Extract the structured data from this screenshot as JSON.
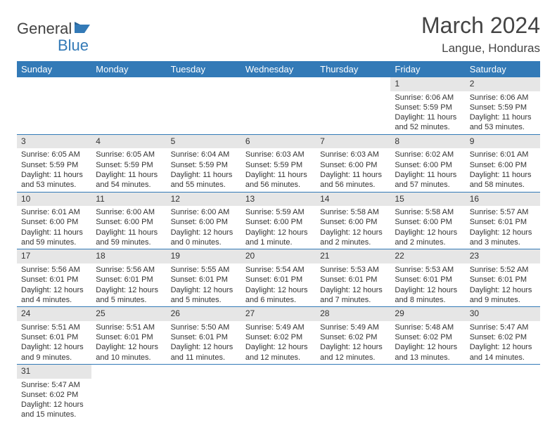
{
  "logo": {
    "text1": "General",
    "text2": "Blue"
  },
  "title": "March 2024",
  "location": "Langue, Honduras",
  "colors": {
    "header_bg": "#337ab7",
    "header_text": "#ffffff",
    "daynum_bg": "#e6e6e6",
    "rule": "#337ab7"
  },
  "day_headers": [
    "Sunday",
    "Monday",
    "Tuesday",
    "Wednesday",
    "Thursday",
    "Friday",
    "Saturday"
  ],
  "weeks": [
    [
      null,
      null,
      null,
      null,
      null,
      {
        "n": "1",
        "sr": "Sunrise: 6:06 AM",
        "ss": "Sunset: 5:59 PM",
        "dl": "Daylight: 11 hours and 52 minutes."
      },
      {
        "n": "2",
        "sr": "Sunrise: 6:06 AM",
        "ss": "Sunset: 5:59 PM",
        "dl": "Daylight: 11 hours and 53 minutes."
      }
    ],
    [
      {
        "n": "3",
        "sr": "Sunrise: 6:05 AM",
        "ss": "Sunset: 5:59 PM",
        "dl": "Daylight: 11 hours and 53 minutes."
      },
      {
        "n": "4",
        "sr": "Sunrise: 6:05 AM",
        "ss": "Sunset: 5:59 PM",
        "dl": "Daylight: 11 hours and 54 minutes."
      },
      {
        "n": "5",
        "sr": "Sunrise: 6:04 AM",
        "ss": "Sunset: 5:59 PM",
        "dl": "Daylight: 11 hours and 55 minutes."
      },
      {
        "n": "6",
        "sr": "Sunrise: 6:03 AM",
        "ss": "Sunset: 5:59 PM",
        "dl": "Daylight: 11 hours and 56 minutes."
      },
      {
        "n": "7",
        "sr": "Sunrise: 6:03 AM",
        "ss": "Sunset: 6:00 PM",
        "dl": "Daylight: 11 hours and 56 minutes."
      },
      {
        "n": "8",
        "sr": "Sunrise: 6:02 AM",
        "ss": "Sunset: 6:00 PM",
        "dl": "Daylight: 11 hours and 57 minutes."
      },
      {
        "n": "9",
        "sr": "Sunrise: 6:01 AM",
        "ss": "Sunset: 6:00 PM",
        "dl": "Daylight: 11 hours and 58 minutes."
      }
    ],
    [
      {
        "n": "10",
        "sr": "Sunrise: 6:01 AM",
        "ss": "Sunset: 6:00 PM",
        "dl": "Daylight: 11 hours and 59 minutes."
      },
      {
        "n": "11",
        "sr": "Sunrise: 6:00 AM",
        "ss": "Sunset: 6:00 PM",
        "dl": "Daylight: 11 hours and 59 minutes."
      },
      {
        "n": "12",
        "sr": "Sunrise: 6:00 AM",
        "ss": "Sunset: 6:00 PM",
        "dl": "Daylight: 12 hours and 0 minutes."
      },
      {
        "n": "13",
        "sr": "Sunrise: 5:59 AM",
        "ss": "Sunset: 6:00 PM",
        "dl": "Daylight: 12 hours and 1 minute."
      },
      {
        "n": "14",
        "sr": "Sunrise: 5:58 AM",
        "ss": "Sunset: 6:00 PM",
        "dl": "Daylight: 12 hours and 2 minutes."
      },
      {
        "n": "15",
        "sr": "Sunrise: 5:58 AM",
        "ss": "Sunset: 6:00 PM",
        "dl": "Daylight: 12 hours and 2 minutes."
      },
      {
        "n": "16",
        "sr": "Sunrise: 5:57 AM",
        "ss": "Sunset: 6:01 PM",
        "dl": "Daylight: 12 hours and 3 minutes."
      }
    ],
    [
      {
        "n": "17",
        "sr": "Sunrise: 5:56 AM",
        "ss": "Sunset: 6:01 PM",
        "dl": "Daylight: 12 hours and 4 minutes."
      },
      {
        "n": "18",
        "sr": "Sunrise: 5:56 AM",
        "ss": "Sunset: 6:01 PM",
        "dl": "Daylight: 12 hours and 5 minutes."
      },
      {
        "n": "19",
        "sr": "Sunrise: 5:55 AM",
        "ss": "Sunset: 6:01 PM",
        "dl": "Daylight: 12 hours and 5 minutes."
      },
      {
        "n": "20",
        "sr": "Sunrise: 5:54 AM",
        "ss": "Sunset: 6:01 PM",
        "dl": "Daylight: 12 hours and 6 minutes."
      },
      {
        "n": "21",
        "sr": "Sunrise: 5:53 AM",
        "ss": "Sunset: 6:01 PM",
        "dl": "Daylight: 12 hours and 7 minutes."
      },
      {
        "n": "22",
        "sr": "Sunrise: 5:53 AM",
        "ss": "Sunset: 6:01 PM",
        "dl": "Daylight: 12 hours and 8 minutes."
      },
      {
        "n": "23",
        "sr": "Sunrise: 5:52 AM",
        "ss": "Sunset: 6:01 PM",
        "dl": "Daylight: 12 hours and 9 minutes."
      }
    ],
    [
      {
        "n": "24",
        "sr": "Sunrise: 5:51 AM",
        "ss": "Sunset: 6:01 PM",
        "dl": "Daylight: 12 hours and 9 minutes."
      },
      {
        "n": "25",
        "sr": "Sunrise: 5:51 AM",
        "ss": "Sunset: 6:01 PM",
        "dl": "Daylight: 12 hours and 10 minutes."
      },
      {
        "n": "26",
        "sr": "Sunrise: 5:50 AM",
        "ss": "Sunset: 6:01 PM",
        "dl": "Daylight: 12 hours and 11 minutes."
      },
      {
        "n": "27",
        "sr": "Sunrise: 5:49 AM",
        "ss": "Sunset: 6:02 PM",
        "dl": "Daylight: 12 hours and 12 minutes."
      },
      {
        "n": "28",
        "sr": "Sunrise: 5:49 AM",
        "ss": "Sunset: 6:02 PM",
        "dl": "Daylight: 12 hours and 12 minutes."
      },
      {
        "n": "29",
        "sr": "Sunrise: 5:48 AM",
        "ss": "Sunset: 6:02 PM",
        "dl": "Daylight: 12 hours and 13 minutes."
      },
      {
        "n": "30",
        "sr": "Sunrise: 5:47 AM",
        "ss": "Sunset: 6:02 PM",
        "dl": "Daylight: 12 hours and 14 minutes."
      }
    ],
    [
      {
        "n": "31",
        "sr": "Sunrise: 5:47 AM",
        "ss": "Sunset: 6:02 PM",
        "dl": "Daylight: 12 hours and 15 minutes."
      },
      null,
      null,
      null,
      null,
      null,
      null
    ]
  ]
}
